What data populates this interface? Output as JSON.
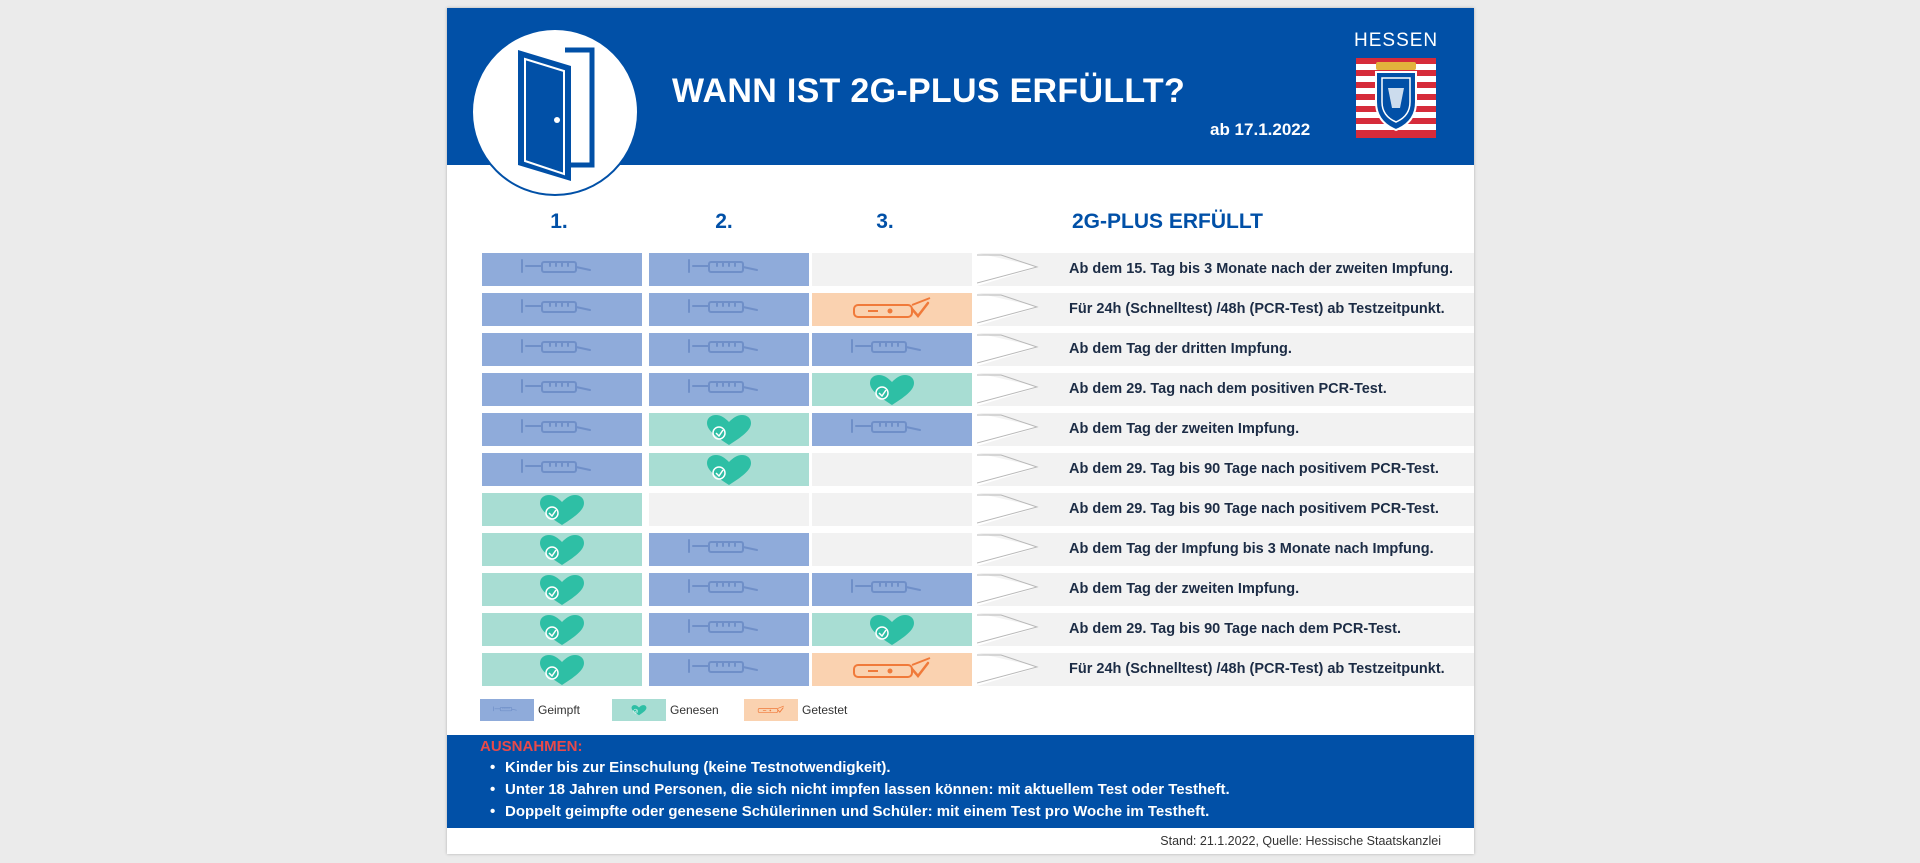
{
  "header": {
    "title": "WANN IST 2G-PLUS ERFÜLLT?",
    "date": "ab 17.1.2022",
    "state": "HESSEN",
    "icon": "door-icon",
    "crest": "hessen-coat-of-arms"
  },
  "columns": [
    "1.",
    "2.",
    "3."
  ],
  "result_header": "2G-PLUS ERFÜLLT",
  "rows": [
    {
      "cells": [
        "geimpft",
        "geimpft",
        "leer"
      ],
      "text": "Ab dem 15. Tag bis 3 Monate nach der zweiten Impfung."
    },
    {
      "cells": [
        "geimpft",
        "geimpft",
        "getestet"
      ],
      "text": "Für 24h (Schnelltest) /48h (PCR-Test) ab Testzeitpunkt."
    },
    {
      "cells": [
        "geimpft",
        "geimpft",
        "geimpft"
      ],
      "text": "Ab dem Tag der dritten Impfung."
    },
    {
      "cells": [
        "geimpft",
        "geimpft",
        "genesen"
      ],
      "text": "Ab dem 29. Tag nach dem positiven PCR-Test."
    },
    {
      "cells": [
        "geimpft",
        "genesen",
        "geimpft"
      ],
      "text": "Ab dem Tag der zweiten Impfung."
    },
    {
      "cells": [
        "geimpft",
        "genesen",
        "leer"
      ],
      "text": "Ab dem 29. Tag bis 90 Tage nach positivem PCR-Test."
    },
    {
      "cells": [
        "genesen",
        "leer",
        "leer"
      ],
      "text": "Ab dem 29. Tag bis 90 Tage nach positivem PCR-Test."
    },
    {
      "cells": [
        "genesen",
        "geimpft",
        "leer"
      ],
      "text": "Ab dem Tag der Impfung bis 3 Monate nach Impfung."
    },
    {
      "cells": [
        "genesen",
        "geimpft",
        "geimpft"
      ],
      "text": "Ab dem Tag der zweiten Impfung."
    },
    {
      "cells": [
        "genesen",
        "geimpft",
        "genesen"
      ],
      "text": "Ab dem 29. Tag bis 90 Tage nach dem PCR-Test."
    },
    {
      "cells": [
        "genesen",
        "geimpft",
        "getestet"
      ],
      "text": "Für 24h (Schnelltest) /48h (PCR-Test) ab Testzeitpunkt."
    }
  ],
  "legend": [
    {
      "key": "geimpft",
      "label": "Geimpft",
      "icon": "syringe-icon",
      "color": "#8fabda"
    },
    {
      "key": "genesen",
      "label": "Genesen",
      "icon": "heart-icon",
      "color": "#a8ddd3"
    },
    {
      "key": "getestet",
      "label": "Getestet",
      "icon": "test-kit-icon",
      "color": "#fad2b0"
    }
  ],
  "exceptions": {
    "title": "AUSNAHMEN:",
    "items": [
      "Kinder bis zur Einschulung (keine Testnotwendigkeit).",
      "Unter 18 Jahren und Personen, die sich nicht impfen lassen können: mit aktuellem Test oder Testheft.",
      "Doppelt geimpfte oder genesene Schülerinnen und Schüler: mit einem Test pro Woche im Testheft."
    ]
  },
  "source": "Stand: 21.1.2022, Quelle: Hessische Staatskanzlei",
  "colors": {
    "primary": "#0150a7",
    "accent_red": "#e94a4a"
  }
}
